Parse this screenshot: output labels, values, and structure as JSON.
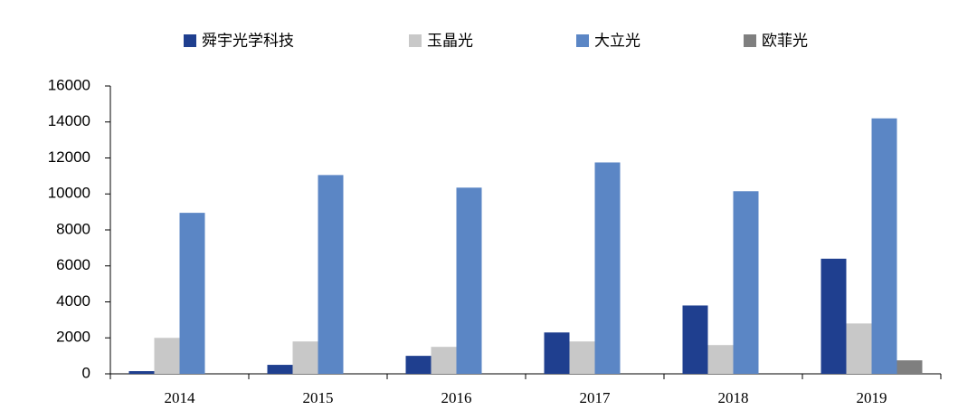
{
  "chart_data": {
    "type": "bar",
    "categories": [
      "2014",
      "2015",
      "2016",
      "2017",
      "2018",
      "2019"
    ],
    "series": [
      {
        "name": "舜宇光学科技",
        "color": "#1f3f8f",
        "values": [
          150,
          500,
          1000,
          2300,
          3800,
          6400
        ]
      },
      {
        "name": "玉晶光",
        "color": "#c8c8c8",
        "values": [
          2000,
          1800,
          1500,
          1800,
          1600,
          2800
        ]
      },
      {
        "name": "大立光",
        "color": "#5b86c5",
        "values": [
          8950,
          11050,
          10350,
          11750,
          10150,
          14200
        ]
      },
      {
        "name": "欧菲光",
        "color": "#7f7f7f",
        "values": [
          0,
          0,
          0,
          0,
          0,
          750
        ]
      }
    ],
    "ylim": [
      0,
      16000
    ],
    "yticks": [
      0,
      2000,
      4000,
      6000,
      8000,
      10000,
      12000,
      14000,
      16000
    ],
    "grid": false,
    "legend": "top"
  }
}
